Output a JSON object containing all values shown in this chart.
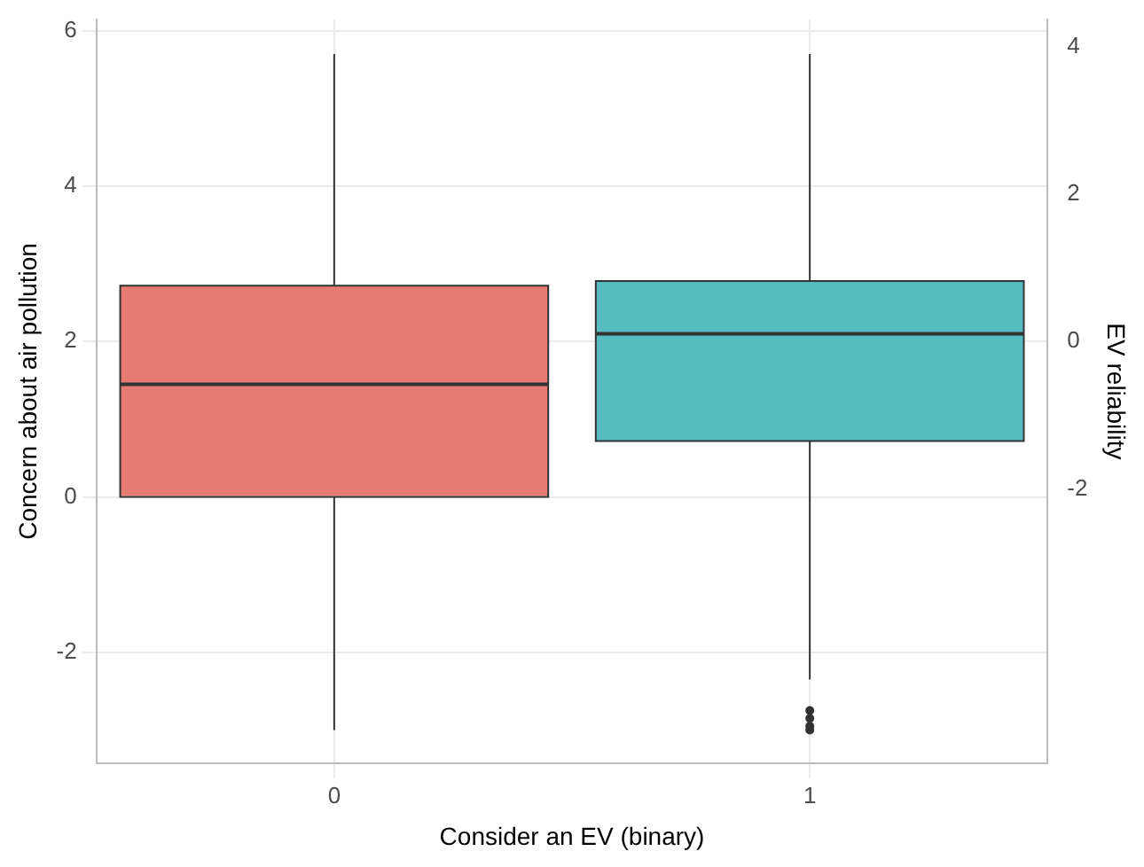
{
  "chart_data": {
    "type": "box",
    "xlabel": "Consider an EV (binary)",
    "ylabel": "Concern about air pollution",
    "y2label": "EV reliability",
    "categories": [
      "0",
      "1"
    ],
    "colors": [
      "#e57b72",
      "#56bcc2"
    ],
    "boxes": [
      {
        "low": -3.0,
        "q1": 0.0,
        "median": 1.45,
        "q3": 2.72,
        "high": 5.7
      },
      {
        "low": -2.35,
        "q1": 0.72,
        "median": 2.1,
        "q3": 2.78,
        "high": 5.7,
        "outliers": [
          -2.75,
          -2.85,
          -2.95,
          -3.0
        ]
      }
    ],
    "ylim": [
      -3.43,
      6.15
    ],
    "yticks": [
      -2,
      0,
      2,
      4,
      6
    ],
    "y2lim": [
      -5.73,
      4.38
    ],
    "y2ticks": [
      -2,
      0,
      2,
      4
    ],
    "grid": true,
    "legend": false
  }
}
